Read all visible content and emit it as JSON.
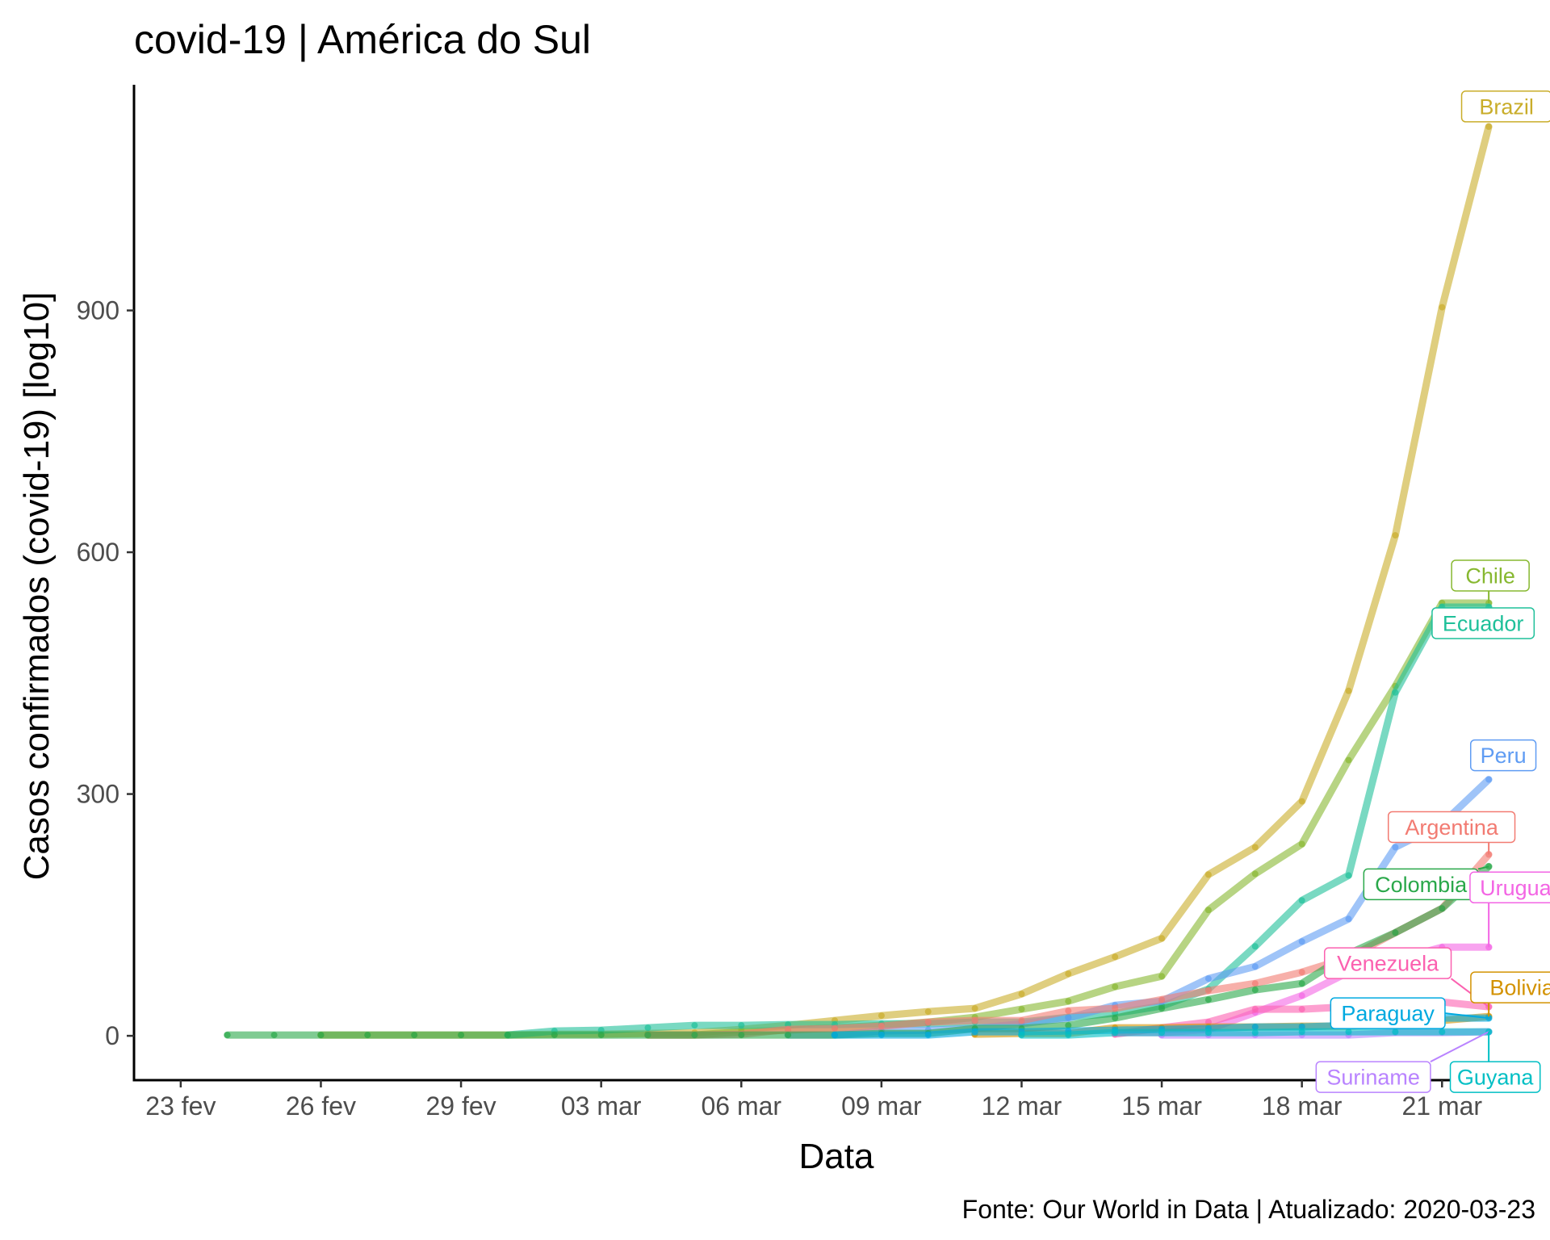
{
  "chart_data": {
    "type": "line",
    "title": "covid-19 | América do Sul",
    "xlabel": "Data",
    "ylabel": "Casos confirmados (covid-19) [log10]",
    "caption": "Fonte: Our World in Data | Atualizado: 2020-03-23",
    "x_ticks": [
      "23 fev",
      "26 fev",
      "29 fev",
      "03 mar",
      "06 mar",
      "09 mar",
      "12 mar",
      "15 mar",
      "18 mar",
      "21 mar"
    ],
    "x_tick_dates": [
      "2020-02-23",
      "2020-02-26",
      "2020-02-29",
      "2020-03-03",
      "2020-03-06",
      "2020-03-09",
      "2020-03-12",
      "2020-03-15",
      "2020-03-18",
      "2020-03-21"
    ],
    "y_ticks": [
      0,
      300,
      600,
      900
    ],
    "xlim": [
      "2020-02-22",
      "2020-03-23"
    ],
    "ylim": [
      -55,
      1180
    ],
    "grid": false,
    "legend": "none",
    "series": [
      {
        "name": "Brazil",
        "color": "#c9ad2a",
        "x": [
          "2020-02-26",
          "2020-02-27",
          "2020-02-28",
          "2020-02-29",
          "2020-03-01",
          "2020-03-02",
          "2020-03-03",
          "2020-03-04",
          "2020-03-05",
          "2020-03-06",
          "2020-03-07",
          "2020-03-08",
          "2020-03-09",
          "2020-03-10",
          "2020-03-11",
          "2020-03-12",
          "2020-03-13",
          "2020-03-14",
          "2020-03-15",
          "2020-03-16",
          "2020-03-17",
          "2020-03-18",
          "2020-03-19",
          "2020-03-20",
          "2020-03-21",
          "2020-03-22"
        ],
        "y": [
          1,
          1,
          1,
          1,
          1,
          2,
          2,
          3,
          4,
          8,
          13,
          19,
          25,
          30,
          34,
          52,
          77,
          98,
          121,
          200,
          234,
          291,
          428,
          621,
          904,
          1128
        ]
      },
      {
        "name": "Chile",
        "color": "#87b830",
        "x": [
          "2020-03-04",
          "2020-03-05",
          "2020-03-06",
          "2020-03-07",
          "2020-03-08",
          "2020-03-09",
          "2020-03-10",
          "2020-03-11",
          "2020-03-12",
          "2020-03-13",
          "2020-03-14",
          "2020-03-15",
          "2020-03-16",
          "2020-03-17",
          "2020-03-18",
          "2020-03-19",
          "2020-03-20",
          "2020-03-21",
          "2020-03-22"
        ],
        "y": [
          1,
          1,
          5,
          7,
          10,
          13,
          17,
          23,
          33,
          43,
          61,
          74,
          156,
          201,
          238,
          342,
          434,
          537,
          537
        ]
      },
      {
        "name": "Ecuador",
        "color": "#1fc09a",
        "x": [
          "2020-03-01",
          "2020-03-02",
          "2020-03-03",
          "2020-03-04",
          "2020-03-05",
          "2020-03-06",
          "2020-03-07",
          "2020-03-08",
          "2020-03-09",
          "2020-03-10",
          "2020-03-11",
          "2020-03-12",
          "2020-03-13",
          "2020-03-14",
          "2020-03-15",
          "2020-03-16",
          "2020-03-17",
          "2020-03-18",
          "2020-03-19",
          "2020-03-20",
          "2020-03-21",
          "2020-03-22"
        ],
        "y": [
          1,
          6,
          7,
          10,
          13,
          13,
          14,
          14,
          15,
          15,
          17,
          17,
          23,
          28,
          37,
          58,
          111,
          168,
          199,
          426,
          532,
          532
        ]
      },
      {
        "name": "Peru",
        "color": "#5f9cf3",
        "x": [
          "2020-03-07",
          "2020-03-08",
          "2020-03-09",
          "2020-03-10",
          "2020-03-11",
          "2020-03-12",
          "2020-03-13",
          "2020-03-14",
          "2020-03-15",
          "2020-03-16",
          "2020-03-17",
          "2020-03-18",
          "2020-03-19",
          "2020-03-20",
          "2020-03-21",
          "2020-03-22"
        ],
        "y": [
          1,
          1,
          6,
          7,
          9,
          15,
          22,
          38,
          43,
          71,
          86,
          117,
          145,
          234,
          263,
          318
        ]
      },
      {
        "name": "Argentina",
        "color": "#f27b72",
        "x": [
          "2020-03-04",
          "2020-03-05",
          "2020-03-06",
          "2020-03-07",
          "2020-03-08",
          "2020-03-09",
          "2020-03-10",
          "2020-03-11",
          "2020-03-12",
          "2020-03-13",
          "2020-03-14",
          "2020-03-15",
          "2020-03-16",
          "2020-03-17",
          "2020-03-18",
          "2020-03-19",
          "2020-03-20",
          "2020-03-21",
          "2020-03-22"
        ],
        "y": [
          1,
          1,
          2,
          8,
          9,
          12,
          17,
          19,
          19,
          31,
          34,
          45,
          56,
          65,
          79,
          97,
          128,
          158,
          225
        ]
      },
      {
        "name": "Colombia",
        "color": "#2aa84a",
        "x": [
          "2020-02-24",
          "2020-02-25",
          "2020-02-26",
          "2020-02-27",
          "2020-02-28",
          "2020-02-29",
          "2020-03-01",
          "2020-03-02",
          "2020-03-03",
          "2020-03-04",
          "2020-03-05",
          "2020-03-06",
          "2020-03-07",
          "2020-03-08",
          "2020-03-09",
          "2020-03-10",
          "2020-03-11",
          "2020-03-12",
          "2020-03-13",
          "2020-03-14",
          "2020-03-15",
          "2020-03-16",
          "2020-03-17",
          "2020-03-18",
          "2020-03-19",
          "2020-03-20",
          "2020-03-21",
          "2020-03-22"
        ],
        "y": [
          1,
          1,
          1,
          1,
          1,
          1,
          1,
          1,
          1,
          1,
          1,
          1,
          1,
          1,
          3,
          3,
          9,
          9,
          13,
          22,
          34,
          45,
          57,
          65,
          102,
          128,
          158,
          210
        ]
      },
      {
        "name": "Uruguay",
        "color": "#f365e4",
        "x": [
          "2020-03-14",
          "2020-03-15",
          "2020-03-16",
          "2020-03-17",
          "2020-03-18",
          "2020-03-19",
          "2020-03-20",
          "2020-03-21",
          "2020-03-22"
        ],
        "y": [
          4,
          4,
          8,
          29,
          50,
          79,
          94,
          110,
          110
        ]
      },
      {
        "name": "Venezuela",
        "color": "#fb61b0",
        "x": [
          "2020-03-14",
          "2020-03-15",
          "2020-03-16",
          "2020-03-17",
          "2020-03-18",
          "2020-03-19",
          "2020-03-20",
          "2020-03-21",
          "2020-03-22"
        ],
        "y": [
          2,
          10,
          17,
          33,
          33,
          36,
          42,
          42,
          36
        ]
      },
      {
        "name": "Bolivia",
        "color": "#d39200",
        "x": [
          "2020-03-11",
          "2020-03-12",
          "2020-03-13",
          "2020-03-14",
          "2020-03-15",
          "2020-03-16",
          "2020-03-17",
          "2020-03-18",
          "2020-03-19",
          "2020-03-20",
          "2020-03-21",
          "2020-03-22"
        ],
        "y": [
          2,
          3,
          3,
          10,
          10,
          11,
          11,
          12,
          12,
          15,
          19,
          24
        ]
      },
      {
        "name": "Paraguay",
        "color": "#00a9e0",
        "x": [
          "2020-03-08",
          "2020-03-09",
          "2020-03-10",
          "2020-03-11",
          "2020-03-12",
          "2020-03-13",
          "2020-03-14",
          "2020-03-15",
          "2020-03-16",
          "2020-03-17",
          "2020-03-18",
          "2020-03-19",
          "2020-03-20",
          "2020-03-21",
          "2020-03-22"
        ],
        "y": [
          1,
          1,
          1,
          5,
          5,
          6,
          7,
          8,
          9,
          11,
          11,
          13,
          18,
          22,
          22
        ]
      },
      {
        "name": "Suriname",
        "color": "#b983ff",
        "x": [
          "2020-03-15",
          "2020-03-16",
          "2020-03-17",
          "2020-03-18",
          "2020-03-19",
          "2020-03-20",
          "2020-03-21",
          "2020-03-22"
        ],
        "y": [
          1,
          1,
          1,
          1,
          1,
          4,
          4,
          5
        ]
      },
      {
        "name": "Guyana",
        "color": "#00bfc4",
        "x": [
          "2020-03-12",
          "2020-03-13",
          "2020-03-14",
          "2020-03-15",
          "2020-03-16",
          "2020-03-17",
          "2020-03-18",
          "2020-03-19",
          "2020-03-20",
          "2020-03-21",
          "2020-03-22"
        ],
        "y": [
          1,
          1,
          4,
          4,
          4,
          4,
          5,
          5,
          5,
          5,
          5
        ]
      }
    ]
  }
}
